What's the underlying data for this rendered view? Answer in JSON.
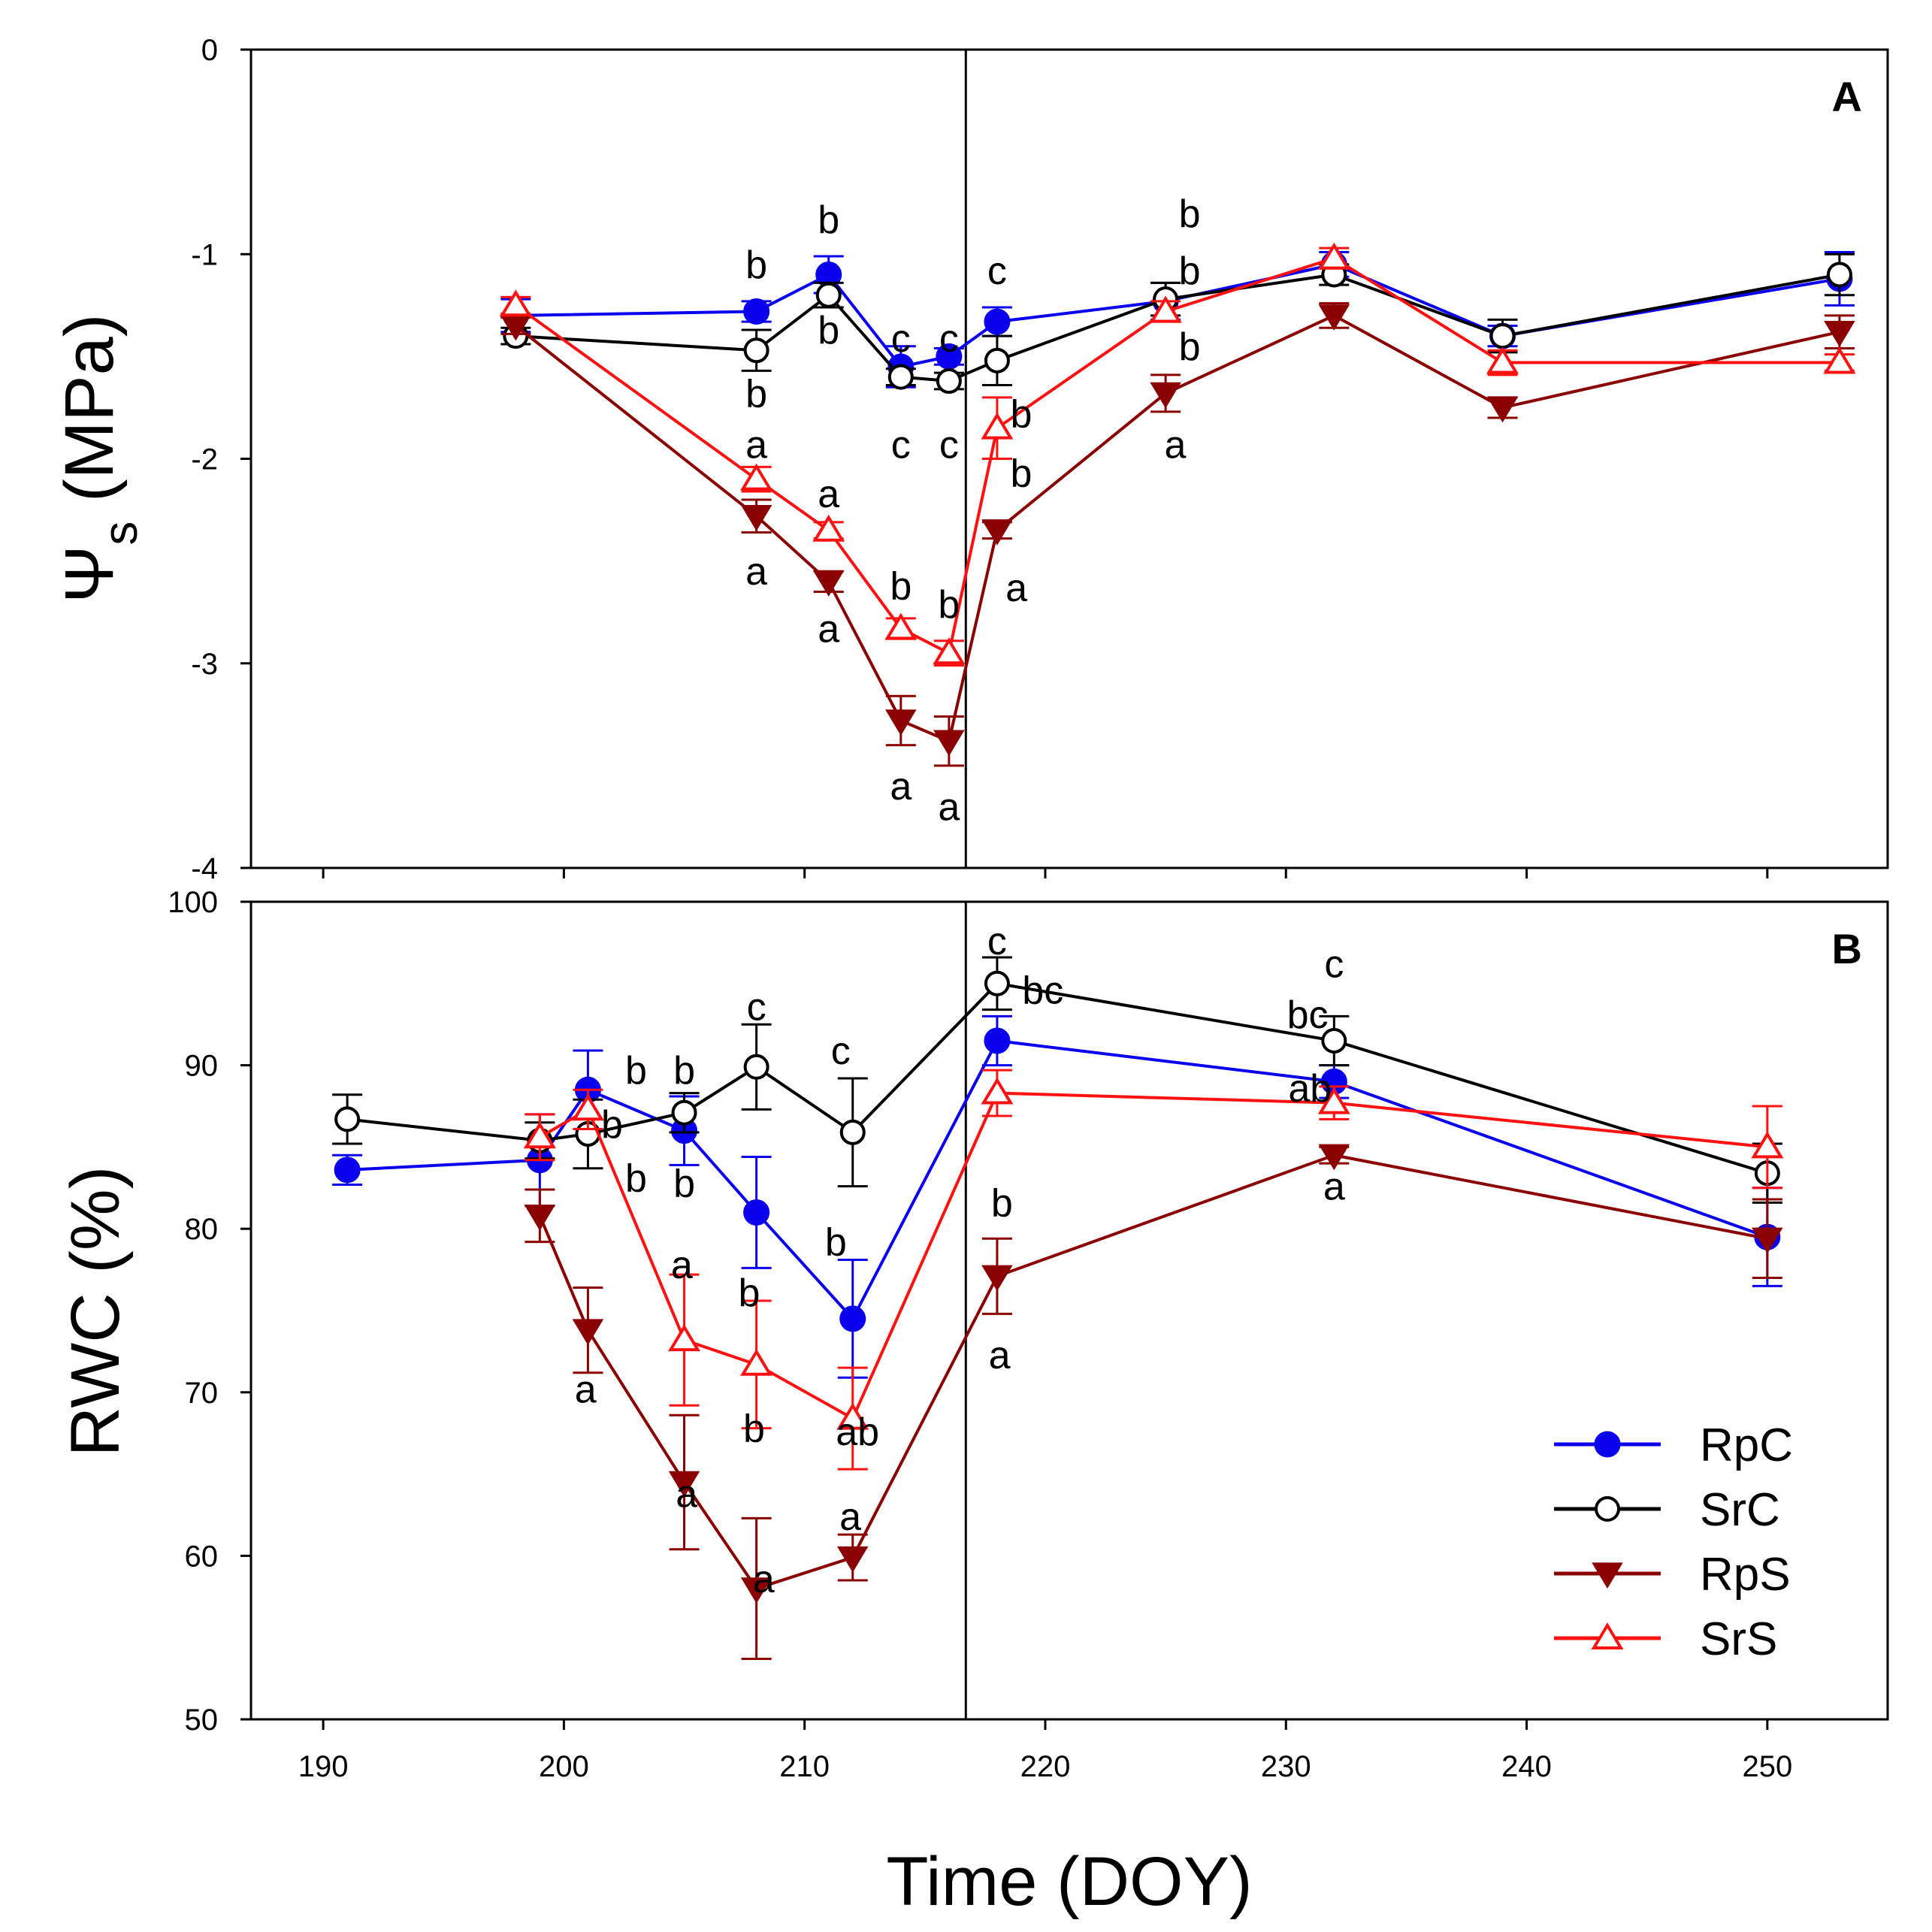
{
  "colors": {
    "RpC": "#0a00ee",
    "SrC": "#000000",
    "RpS": "#8b0000",
    "SrS": "#ff1111"
  },
  "chart_data": [
    {
      "type": "line",
      "panel": "A",
      "xlim": [
        187,
        255
      ],
      "ylim": [
        -4,
        0
      ],
      "yticks": [
        0,
        -1,
        -2,
        -3,
        -4
      ],
      "ylabel_symbol": "Ψ",
      "ylabel_subscript": "s",
      "ylabel_unit": " (MPa)",
      "treatment_end_doy": 216.7,
      "series": [
        {
          "name": "RpC",
          "marker": "circle-filled",
          "x": [
            198,
            208,
            211,
            214,
            216,
            218,
            225,
            232,
            239,
            253
          ],
          "y": [
            -1.3,
            -1.28,
            -1.1,
            -1.55,
            -1.5,
            -1.33,
            -1.23,
            -1.05,
            -1.4,
            -1.12
          ],
          "err": [
            0.08,
            0.05,
            0.09,
            0.1,
            0.04,
            0.07,
            0.09,
            0.06,
            0.05,
            0.13
          ]
        },
        {
          "name": "SrC",
          "marker": "circle-open",
          "x": [
            198,
            208,
            211,
            214,
            216,
            218,
            225,
            232,
            239,
            253
          ],
          "y": [
            -1.4,
            -1.47,
            -1.2,
            -1.6,
            -1.62,
            -1.52,
            -1.22,
            -1.1,
            -1.4,
            -1.1
          ],
          "err": [
            0.04,
            0.1,
            0.06,
            0.04,
            0.04,
            0.12,
            0.08,
            0.05,
            0.08,
            0.1
          ]
        },
        {
          "name": "RpS",
          "marker": "triangle-down-filled",
          "x": [
            198,
            208,
            211,
            214,
            216,
            218,
            225,
            232,
            239,
            253
          ],
          "y": [
            -1.35,
            -2.28,
            -2.6,
            -3.28,
            -3.38,
            -2.35,
            -1.68,
            -1.3,
            -1.75,
            -1.38
          ],
          "err": [
            0.04,
            0.08,
            0.05,
            0.12,
            0.12,
            0.04,
            0.09,
            0.06,
            0.05,
            0.08
          ]
        },
        {
          "name": "SrS",
          "marker": "triangle-up-open",
          "x": [
            198,
            208,
            211,
            214,
            216,
            218,
            225,
            232,
            239,
            253
          ],
          "y": [
            -1.25,
            -2.1,
            -2.35,
            -2.83,
            -2.95,
            -1.85,
            -1.28,
            -1.02,
            -1.53,
            -1.53
          ],
          "err": [
            0.04,
            0.06,
            0.04,
            0.05,
            0.06,
            0.15,
            0.05,
            0.05,
            0.06,
            0.04
          ]
        }
      ],
      "significance_labels": [
        {
          "doy": 208,
          "value": -1.05,
          "text": "b"
        },
        {
          "doy": 208,
          "value": -1.68,
          "text": "b"
        },
        {
          "doy": 208,
          "value": -1.93,
          "text": "a"
        },
        {
          "doy": 208,
          "value": -2.55,
          "text": "a"
        },
        {
          "doy": 211,
          "value": -0.83,
          "text": "b"
        },
        {
          "doy": 211,
          "value": -1.37,
          "text": "b"
        },
        {
          "doy": 211,
          "value": -2.17,
          "text": "a"
        },
        {
          "doy": 211,
          "value": -2.83,
          "text": "a"
        },
        {
          "doy": 214,
          "value": -1.41,
          "text": "c"
        },
        {
          "doy": 214,
          "value": -1.93,
          "text": "c"
        },
        {
          "doy": 214,
          "value": -2.62,
          "text": "b"
        },
        {
          "doy": 214,
          "value": -3.6,
          "text": "a"
        },
        {
          "doy": 216,
          "value": -1.41,
          "text": "c"
        },
        {
          "doy": 216,
          "value": -1.93,
          "text": "c"
        },
        {
          "doy": 216,
          "value": -2.71,
          "text": "b"
        },
        {
          "doy": 216,
          "value": -3.7,
          "text": "a"
        },
        {
          "doy": 218,
          "value": -1.08,
          "text": "c"
        },
        {
          "doy": 219,
          "value": -1.78,
          "text": "b"
        },
        {
          "doy": 219,
          "value": -2.07,
          "text": "b"
        },
        {
          "doy": 218.8,
          "value": -2.63,
          "text": "a"
        },
        {
          "doy": 226,
          "value": -0.8,
          "text": "b"
        },
        {
          "doy": 226,
          "value": -1.08,
          "text": "b"
        },
        {
          "doy": 226,
          "value": -1.45,
          "text": "b"
        },
        {
          "doy": 225.4,
          "value": -1.93,
          "text": "a"
        }
      ]
    },
    {
      "type": "line",
      "panel": "B",
      "xlim": [
        187,
        255
      ],
      "ylim": [
        50,
        100
      ],
      "yticks": [
        100,
        90,
        80,
        70,
        60,
        50
      ],
      "xticks": [
        190,
        200,
        210,
        220,
        230,
        240,
        250
      ],
      "ylabel": "RWC (%)",
      "treatment_end_doy": 216.7,
      "series": [
        {
          "name": "RpC",
          "marker": "circle-filled",
          "x": [
            191,
            199,
            201,
            205,
            208,
            212,
            218,
            232,
            250
          ],
          "y": [
            83.6,
            84.2,
            88.5,
            86.0,
            81.0,
            74.5,
            91.5,
            89.0,
            79.5
          ],
          "err": [
            0.9,
            2.8,
            2.4,
            2.1,
            3.4,
            3.6,
            1.5,
            1.0,
            3.0
          ]
        },
        {
          "name": "SrC",
          "marker": "circle-open",
          "x": [
            191,
            199,
            201,
            205,
            208,
            212,
            218,
            232,
            250
          ],
          "y": [
            86.7,
            85.4,
            85.8,
            87.1,
            89.9,
            85.9,
            95.0,
            91.5,
            83.4
          ],
          "err": [
            1.5,
            1.1,
            2.1,
            1.2,
            2.6,
            3.3,
            1.6,
            1.5,
            1.8
          ]
        },
        {
          "name": "RpS",
          "marker": "triangle-down-filled",
          "x": [
            199,
            201,
            205,
            208,
            212,
            218,
            232,
            250
          ],
          "y": [
            80.8,
            73.8,
            64.5,
            58.0,
            59.9,
            77.1,
            84.5,
            79.4
          ],
          "err": [
            1.6,
            2.6,
            4.1,
            4.3,
            1.4,
            2.3,
            0.5,
            2.4
          ]
        },
        {
          "name": "SrS",
          "marker": "triangle-up-open",
          "x": [
            199,
            201,
            205,
            208,
            212,
            218,
            232,
            250
          ],
          "y": [
            85.6,
            87.3,
            73.2,
            71.7,
            68.4,
            88.3,
            87.7,
            85.0
          ],
          "err": [
            1.4,
            1.2,
            4.0,
            3.9,
            3.1,
            1.4,
            1.0,
            2.5
          ]
        }
      ],
      "significance_labels": [
        {
          "doy": 203,
          "value": 89.7,
          "text": "b"
        },
        {
          "doy": 202,
          "value": 86.4,
          "text": "b"
        },
        {
          "doy": 203,
          "value": 83.1,
          "text": "b"
        },
        {
          "doy": 200.9,
          "value": 70.2,
          "text": "a"
        },
        {
          "doy": 205,
          "value": 89.7,
          "text": "b"
        },
        {
          "doy": 205,
          "value": 82.8,
          "text": "b"
        },
        {
          "doy": 204.9,
          "value": 77.8,
          "text": "a"
        },
        {
          "doy": 205.1,
          "value": 63.8,
          "text": "a"
        },
        {
          "doy": 208,
          "value": 93.6,
          "text": "c"
        },
        {
          "doy": 207.7,
          "value": 76.1,
          "text": "b"
        },
        {
          "doy": 207.9,
          "value": 67.8,
          "text": "b"
        },
        {
          "doy": 208.3,
          "value": 58.6,
          "text": "a"
        },
        {
          "doy": 211.5,
          "value": 90.9,
          "text": "c"
        },
        {
          "doy": 211.3,
          "value": 79.2,
          "text": "b"
        },
        {
          "doy": 212.2,
          "value": 67.6,
          "text": "ab"
        },
        {
          "doy": 211.9,
          "value": 62.4,
          "text": "a"
        },
        {
          "doy": 218,
          "value": 97.6,
          "text": "c"
        },
        {
          "doy": 219.9,
          "value": 94.6,
          "text": "bc"
        },
        {
          "doy": 218.2,
          "value": 81.6,
          "text": "b"
        },
        {
          "doy": 218.1,
          "value": 72.3,
          "text": "a"
        },
        {
          "doy": 232,
          "value": 96.2,
          "text": "c"
        },
        {
          "doy": 230.9,
          "value": 93.1,
          "text": "bc"
        },
        {
          "doy": 231,
          "value": 88.6,
          "text": "ab"
        },
        {
          "doy": 232,
          "value": 82.6,
          "text": "a"
        }
      ]
    }
  ],
  "shared": {
    "xlabel": "Time (DOY)",
    "legend": [
      "RpC",
      "SrC",
      "RpS",
      "SrS"
    ],
    "legend_position": "bottom-right of panel B"
  }
}
